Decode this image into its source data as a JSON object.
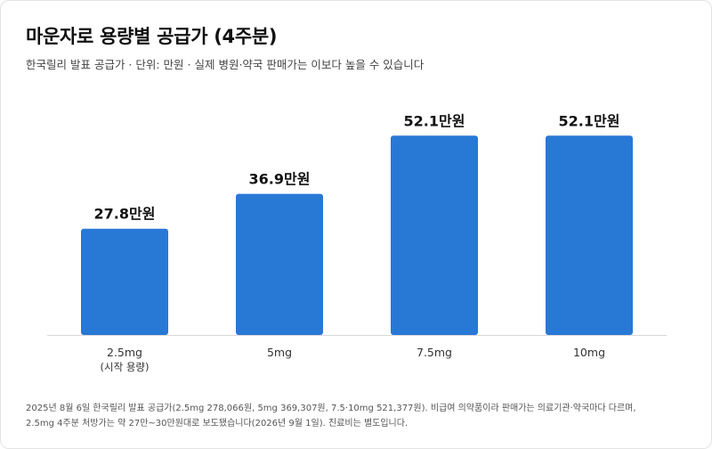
{
  "title": "마운자로 용량별 공급가 (4주분)",
  "subtitle": "한국릴리 발표 공급가 · 단위: 만원 · 실제 병원·약국 판매가는 이보다 높을 수 있습니다",
  "colors": {
    "bar": "#2878d6",
    "axis": "#d9d9d9",
    "label": "#111111",
    "tick": "#333333"
  },
  "chart_data": {
    "type": "bar",
    "categories": [
      "2.5mg",
      "5mg",
      "7.5mg",
      "10mg"
    ],
    "category_sublabels": [
      "(시작 용량)",
      "",
      "",
      ""
    ],
    "values": [
      27.8,
      36.9,
      52.1,
      52.1
    ],
    "value_labels": [
      "27.8만원",
      "36.9만원",
      "52.1만원",
      "52.1만원"
    ],
    "unit": "만원",
    "ylim": [
      0,
      58
    ],
    "grid": false,
    "legend": "none"
  },
  "footnote": {
    "line1": "2025년 8월 6일 한국릴리 발표 공급가(2.5mg 278,066원, 5mg 369,307원, 7.5·10mg 521,377원). 비급여 의약품이라 판매가는 의료기관·약국마다 다르며,",
    "line2": "2.5mg 4주분 처방가는 약 27만~30만원대로 보도됐습니다(2026년 9월 1일). 진료비는 별도입니다."
  }
}
